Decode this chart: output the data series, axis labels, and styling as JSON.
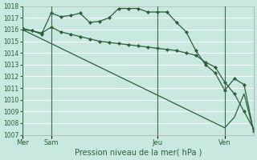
{
  "xlabel": "Pression niveau de la mer( hPa )",
  "bg_color": "#c8e8e0",
  "grid_color": "#ffffff",
  "line_color": "#2d5e38",
  "ylim": [
    1007,
    1018
  ],
  "yticks": [
    1007,
    1008,
    1009,
    1010,
    1011,
    1012,
    1013,
    1014,
    1015,
    1016,
    1017,
    1018
  ],
  "day_positions": [
    0,
    3,
    14,
    21
  ],
  "day_labels": [
    "Mer",
    "Sam",
    "Jeu",
    "Ven"
  ],
  "total_points": 25,
  "line_wavy": [
    1016.1,
    1015.9,
    1015.6,
    1017.4,
    1017.1,
    1017.2,
    1017.4,
    1016.6,
    1016.7,
    1017.0,
    1017.8,
    1017.8,
    1017.8,
    1017.5,
    1017.5,
    1017.5,
    1016.6,
    1015.8,
    1014.2,
    1013.0,
    1012.3,
    1010.8,
    1011.8,
    1011.3,
    1007.3
  ],
  "line_mid": [
    1016.0,
    1015.9,
    1015.7,
    1016.2,
    1015.8,
    1015.6,
    1015.4,
    1015.2,
    1015.0,
    1014.9,
    1014.8,
    1014.7,
    1014.6,
    1014.5,
    1014.4,
    1014.3,
    1014.2,
    1014.0,
    1013.8,
    1013.2,
    1012.8,
    1011.5,
    1010.5,
    1009.0,
    1007.5
  ],
  "line_diag": [
    1016.0,
    1015.6,
    1015.2,
    1014.8,
    1014.4,
    1014.0,
    1013.6,
    1013.2,
    1012.8,
    1012.4,
    1012.0,
    1011.6,
    1011.2,
    1010.8,
    1010.4,
    1010.0,
    1009.6,
    1009.2,
    1008.8,
    1008.4,
    1008.0,
    1007.6,
    1008.5,
    1010.5,
    1007.3
  ]
}
